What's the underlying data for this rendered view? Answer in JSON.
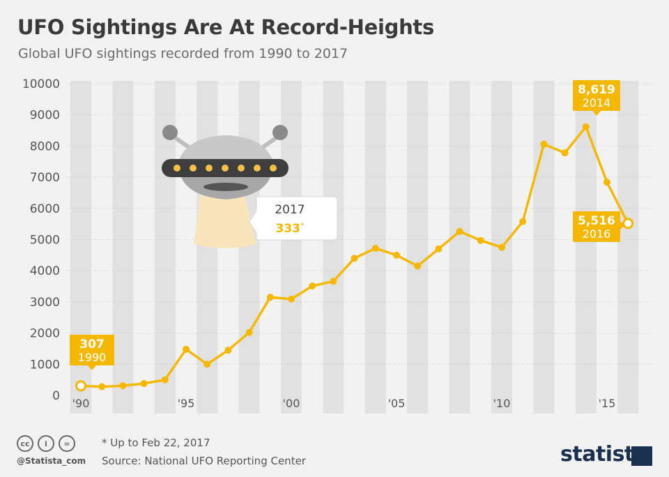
{
  "header": {
    "title": "UFO Sightings Are At Record-Heights",
    "subtitle": "Global UFO sightings recorded from 1990 to 2017"
  },
  "chart_data": {
    "type": "line",
    "title": "UFO Sightings Are At Record-Heights",
    "subtitle": "Global UFO sightings recorded from 1990 to 2017",
    "x": [
      1990,
      1991,
      1992,
      1993,
      1994,
      1995,
      1996,
      1997,
      1998,
      1999,
      2000,
      2001,
      2002,
      2003,
      2004,
      2005,
      2006,
      2007,
      2008,
      2009,
      2010,
      2011,
      2012,
      2013,
      2014,
      2015,
      2016
    ],
    "y": [
      307,
      280,
      310,
      380,
      500,
      1480,
      1000,
      1450,
      2020,
      3150,
      3090,
      3510,
      3660,
      4400,
      4720,
      4500,
      4150,
      4700,
      5260,
      4970,
      4750,
      5580,
      8060,
      7780,
      8619,
      6840,
      5516
    ],
    "ylim": [
      0,
      10000
    ],
    "y_ticks": [
      "0",
      "1000",
      "2000",
      "3000",
      "4000",
      "5000",
      "6000",
      "7000",
      "8000",
      "9000",
      "10000"
    ],
    "x_ticks": [
      {
        "year": 1990,
        "label": "'90"
      },
      {
        "year": 1995,
        "label": "'95"
      },
      {
        "year": 2000,
        "label": "'00"
      },
      {
        "year": 2005,
        "label": "'05"
      },
      {
        "year": 2010,
        "label": "'10"
      },
      {
        "year": 2015,
        "label": "'15"
      }
    ],
    "line_color": "#f5b800",
    "grid": true,
    "annotations": [
      {
        "year": 1990,
        "value": "307",
        "label": "1990"
      },
      {
        "year": 2014,
        "value": "8,619",
        "label": "2014"
      },
      {
        "year": 2016,
        "value": "5,516",
        "label": "2016"
      }
    ],
    "callout": {
      "year": "2017",
      "value": "333",
      "mark": "*"
    }
  },
  "footer": {
    "note": "* Up to Feb 22, 2017",
    "source": "Source: National UFO Reporting Center",
    "handle": "@Statista_com",
    "brand": "statista",
    "license_icons": [
      "cc-icon",
      "attribution-icon",
      "no-derivatives-icon"
    ]
  }
}
